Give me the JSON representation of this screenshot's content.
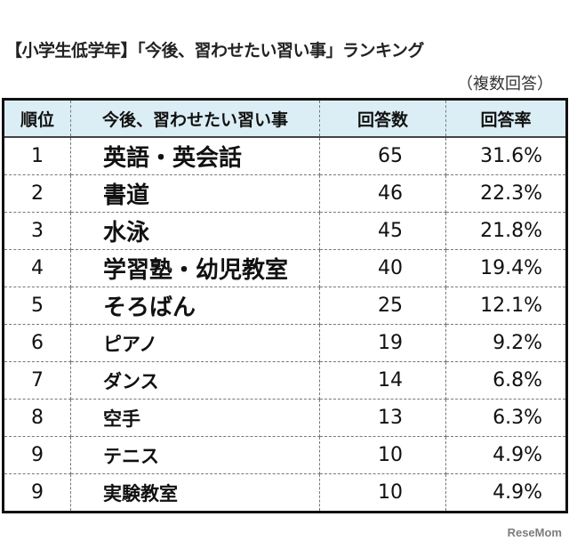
{
  "chart_data": {
    "type": "table",
    "title": "【小学生低学年】「今後、習わせたい習い事」ランキング",
    "note": "（複数回答）",
    "columns": [
      "順位",
      "今後、習わせたい習い事",
      "回答数",
      "回答率"
    ],
    "rows": [
      {
        "rank": "1",
        "item": "英語・英会話",
        "count": "65",
        "rate": "31.6%"
      },
      {
        "rank": "2",
        "item": "書道",
        "count": "46",
        "rate": "22.3%"
      },
      {
        "rank": "3",
        "item": "水泳",
        "count": "45",
        "rate": "21.8%"
      },
      {
        "rank": "4",
        "item": "学習塾・幼児教室",
        "count": "40",
        "rate": "19.4%"
      },
      {
        "rank": "5",
        "item": "そろばん",
        "count": "25",
        "rate": "12.1%"
      },
      {
        "rank": "6",
        "item": "ピアノ",
        "count": "19",
        "rate": "9.2%"
      },
      {
        "rank": "7",
        "item": "ダンス",
        "count": "14",
        "rate": "6.8%"
      },
      {
        "rank": "8",
        "item": "空手",
        "count": "13",
        "rate": "6.3%"
      },
      {
        "rank": "9",
        "item": "テニス",
        "count": "10",
        "rate": "4.9%"
      },
      {
        "rank": "9",
        "item": "実験教室",
        "count": "10",
        "rate": "4.9%"
      }
    ],
    "header_color": "#dceef5"
  },
  "watermark": "ReseMom"
}
